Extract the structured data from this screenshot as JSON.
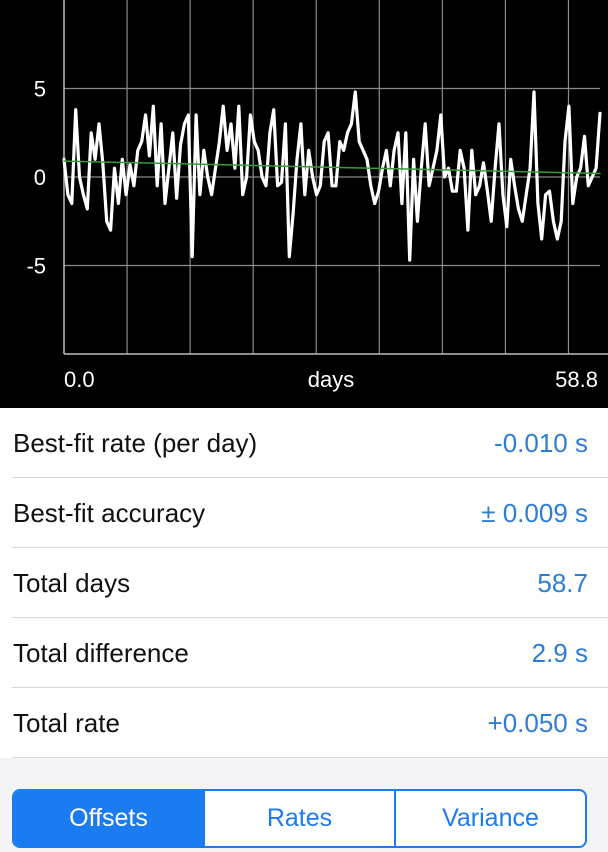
{
  "chart_data": {
    "type": "line",
    "xlabel": "days",
    "x_tick_labels": [
      "0.0",
      "58.8"
    ],
    "xlim": [
      0.0,
      58.8
    ],
    "ylim": [
      -10,
      10
    ],
    "y_ticks": [
      5,
      0,
      -5
    ],
    "grid": true,
    "series": [
      {
        "color": "#ffffff",
        "values": [
          1.0,
          -1.0,
          -1.5,
          3.8,
          0.0,
          -1.0,
          -1.8,
          2.5,
          1.0,
          3.0,
          0.8,
          -2.5,
          -3.0,
          0.5,
          -1.5,
          1.0,
          -1.0,
          0.7,
          -0.5,
          1.5,
          2.0,
          3.5,
          1.2,
          4.0,
          -0.5,
          3.0,
          -1.5,
          0.5,
          2.5,
          -1.2,
          1.8,
          3.0,
          3.5,
          -4.5,
          3.5,
          -1.0,
          1.5,
          0.0,
          -1.0,
          0.5,
          2.0,
          4.0,
          1.5,
          3.0,
          0.5,
          4.0,
          -1.0,
          0.0,
          3.5,
          2.0,
          1.5,
          0.0,
          -0.5,
          2.5,
          3.8,
          -0.5,
          -0.3,
          3.0,
          -4.5,
          -2.0,
          1.0,
          3.0,
          -1.0,
          1.5,
          0.0,
          -1.0,
          -0.5,
          2.0,
          2.5,
          -0.5,
          -0.5,
          2.0,
          1.5,
          2.5,
          3.0,
          4.8,
          2.0,
          1.5,
          1.0,
          -0.5,
          -1.5,
          -0.8,
          0.5,
          1.5,
          -0.5,
          1.5,
          2.5,
          -1.5,
          2.5,
          -4.7,
          1.0,
          -2.5,
          0.5,
          3.0,
          -0.5,
          0.5,
          1.5,
          3.5,
          0.0,
          0.5,
          -0.8,
          -0.8,
          1.5,
          0.5,
          -3.0,
          1.5,
          -1.0,
          -0.5,
          0.8,
          -0.8,
          -2.5,
          0.5,
          3.0,
          -1.0,
          -2.8,
          1.0,
          -0.5,
          -1.8,
          -2.5,
          -1.0,
          0.5,
          4.8,
          -1.5,
          -3.5,
          -1.0,
          -0.8,
          -2.5,
          -3.5,
          -2.5,
          2.0,
          4.0,
          -1.5,
          0.0,
          0.5,
          2.3,
          -0.5,
          0.0,
          0.5,
          3.6
        ]
      },
      {
        "color": "#3a9a3a",
        "values": [
          0.9,
          0.2
        ]
      }
    ]
  },
  "stats": [
    {
      "label": "Best-fit rate (per day)",
      "value": "-0.010 s"
    },
    {
      "label": "Best-fit accuracy",
      "value": "± 0.009 s"
    },
    {
      "label": "Total days",
      "value": "58.7"
    },
    {
      "label": "Total difference",
      "value": "2.9 s"
    },
    {
      "label": "Total rate",
      "value": "+0.050 s"
    }
  ],
  "tabs": {
    "items": [
      "Offsets",
      "Rates",
      "Variance"
    ],
    "selected": "Offsets"
  },
  "colors": {
    "accent": "#1a7cf0",
    "value_text": "#2b7dd6",
    "chart_background": "#000000"
  }
}
